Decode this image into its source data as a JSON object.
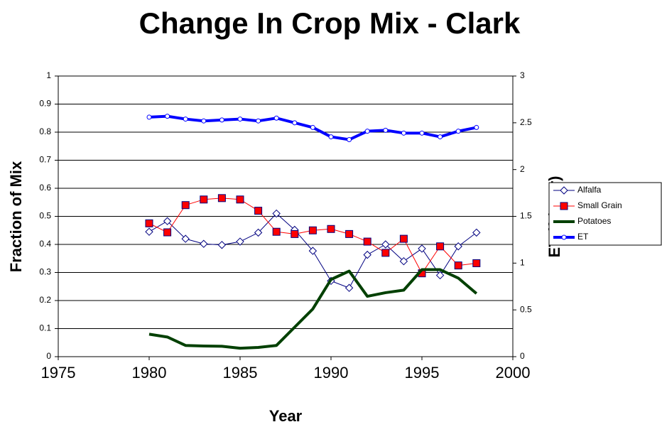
{
  "chart_data": {
    "type": "line",
    "title": "Change In Crop Mix - Clark",
    "x_label": "Year",
    "y_label": "Fraction of Mix",
    "y2_label": "ET (ft/year)",
    "x": [
      1980,
      1981,
      1982,
      1983,
      1984,
      1985,
      1986,
      1987,
      1988,
      1989,
      1990,
      1991,
      1992,
      1993,
      1994,
      1995,
      1996,
      1997,
      1998
    ],
    "xlim": [
      1975,
      2000
    ],
    "xticks": [
      1975,
      1980,
      1985,
      1990,
      1995,
      2000
    ],
    "ylim": [
      0,
      1
    ],
    "yticks": [
      0,
      0.1,
      0.2,
      0.3,
      0.4,
      0.5,
      0.6,
      0.7,
      0.8,
      0.9,
      1
    ],
    "y2lim": [
      0,
      3
    ],
    "y2ticks": [
      0,
      0.5,
      1,
      1.5,
      2,
      2.5,
      3
    ],
    "grid": true,
    "legend": "right",
    "series": [
      {
        "name": "Alfalfa",
        "color": "#000080",
        "marker": "diamond",
        "width": 1,
        "values": [
          0.445,
          0.483,
          0.42,
          0.402,
          0.398,
          0.41,
          0.442,
          0.51,
          0.452,
          0.377,
          0.27,
          0.245,
          0.363,
          0.4,
          0.34,
          0.385,
          0.29,
          0.393,
          0.442
        ]
      },
      {
        "name": "Small Grain",
        "color": "#ff0000",
        "marker": "square",
        "width": 1,
        "values": [
          0.475,
          0.443,
          0.54,
          0.56,
          0.565,
          0.56,
          0.52,
          0.445,
          0.437,
          0.45,
          0.455,
          0.437,
          0.41,
          0.37,
          0.42,
          0.297,
          0.393,
          0.325,
          0.333
        ]
      },
      {
        "name": "Potatoes",
        "color": "#004000",
        "marker": "none",
        "width": 4,
        "values": [
          0.08,
          0.07,
          0.04,
          0.038,
          0.037,
          0.03,
          0.033,
          0.04,
          0.105,
          0.17,
          0.275,
          0.305,
          0.215,
          0.228,
          0.237,
          0.31,
          0.31,
          0.28,
          0.225
        ]
      },
      {
        "name": "ET",
        "color": "#0000ff",
        "marker": "circle",
        "width": 4,
        "axis": "y2",
        "values": [
          2.56,
          2.57,
          2.54,
          2.52,
          2.53,
          2.54,
          2.52,
          2.55,
          2.5,
          2.45,
          2.35,
          2.32,
          2.41,
          2.42,
          2.39,
          2.39,
          2.35,
          2.41,
          2.45
        ]
      }
    ]
  }
}
